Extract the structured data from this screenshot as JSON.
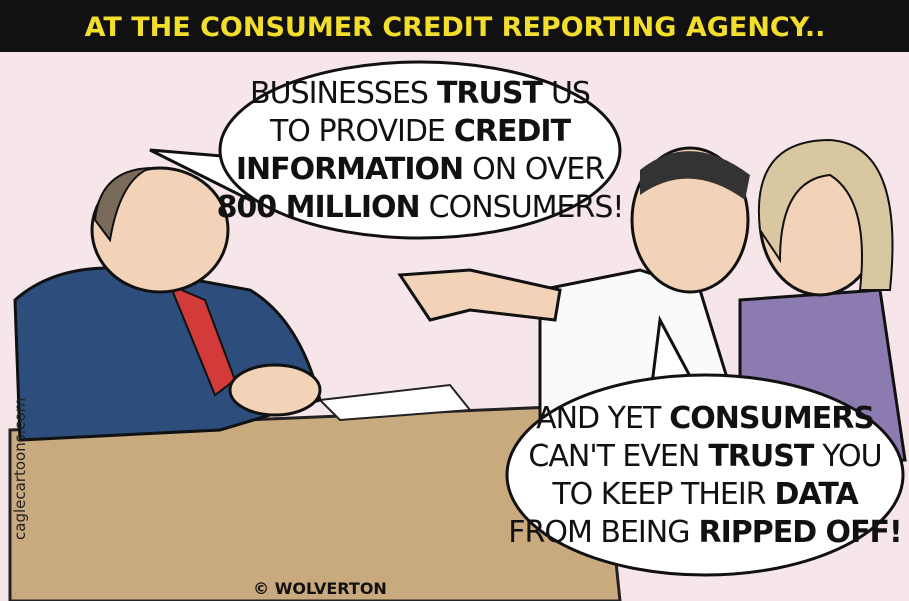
{
  "title": "AT THE CONSUMER CREDIT REPORTING AGENCY..",
  "bubbles": [
    {
      "lines": [
        [
          {
            "text": "BUSINESSES",
            "bold": false
          },
          {
            "text": "TRUST",
            "bold": true
          },
          {
            "text": "US",
            "bold": false
          }
        ],
        [
          {
            "text": "TO PROVIDE",
            "bold": false
          },
          {
            "text": "CREDIT",
            "bold": true
          }
        ],
        [
          {
            "text": "INFORMATION",
            "bold": true
          },
          {
            "text": "ON OVER",
            "bold": false
          }
        ],
        [
          {
            "text": "800 MILLION",
            "bold": true
          },
          {
            "text": "CONSUMERS!",
            "bold": false
          }
        ]
      ]
    },
    {
      "lines": [
        [
          {
            "text": "AND YET",
            "bold": false
          },
          {
            "text": "CONSUMERS",
            "bold": true
          }
        ],
        [
          {
            "text": "CAN'T EVEN",
            "bold": false
          },
          {
            "text": "TRUST",
            "bold": true
          },
          {
            "text": "YOU",
            "bold": false
          }
        ],
        [
          {
            "text": "TO KEEP THEIR",
            "bold": false
          },
          {
            "text": "DATA",
            "bold": true
          }
        ],
        [
          {
            "text": "FROM BEING",
            "bold": false
          },
          {
            "text": "RIPPED OFF!",
            "bold": true
          }
        ]
      ]
    }
  ],
  "signature": "© WOLVERTON",
  "credit": "caglecartoons.com"
}
